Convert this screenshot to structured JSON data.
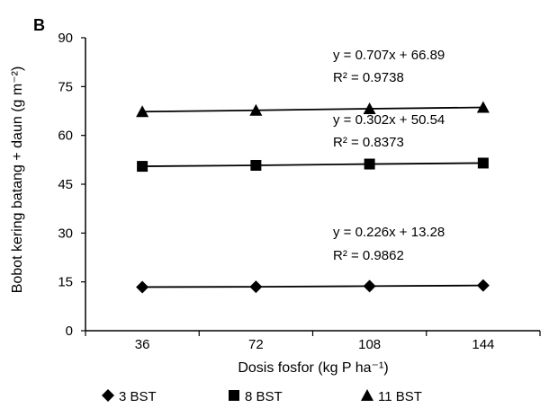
{
  "chart_data": {
    "type": "line",
    "panel_label": "B",
    "xlabel": "Dosis fosfor (kg P ha⁻¹)",
    "ylabel": "Bobot kering batang + daun (g m⁻²)",
    "categories": [
      "36",
      "72",
      "108",
      "144"
    ],
    "x": [
      36,
      72,
      108,
      144
    ],
    "ylim": [
      0,
      90
    ],
    "yticks": [
      "0",
      "15",
      "30",
      "45",
      "60",
      "75",
      "90"
    ],
    "grid": false,
    "legend_position": "bottom",
    "series": [
      {
        "name": "3 BST",
        "marker": "diamond",
        "color": "#000000",
        "values": [
          13.4,
          13.5,
          13.7,
          13.9
        ],
        "equation": "y = 0.226x + 13.28",
        "r2": "R² = 0.9862"
      },
      {
        "name": "8 BST",
        "marker": "square",
        "color": "#000000",
        "values": [
          50.5,
          50.8,
          51.2,
          51.5
        ],
        "equation": "y = 0.302x + 50.54",
        "r2": "R² = 0.8373"
      },
      {
        "name": "11 BST",
        "marker": "triangle",
        "color": "#000000",
        "values": [
          67.3,
          67.7,
          68.2,
          68.6
        ],
        "equation": "y = 0.707x + 66.89",
        "r2": "R² = 0.9738"
      }
    ]
  }
}
